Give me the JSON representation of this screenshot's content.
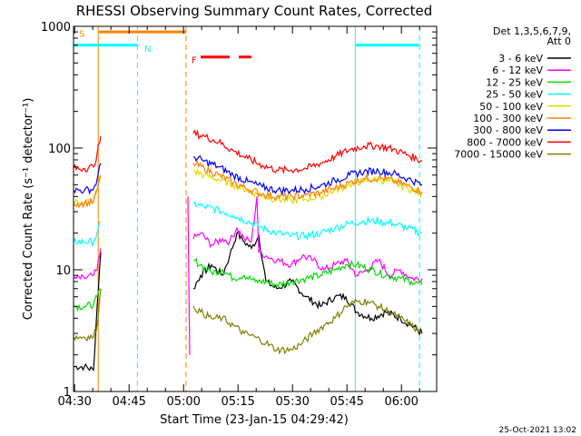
{
  "chart_data": {
    "type": "line",
    "title": "RHESSI Observing Summary Count Rates, Corrected",
    "xlabel": "Start Time (23-Jan-15 04:29:42)",
    "ylabel": "Corrected Count Rate (s⁻¹ detector⁻¹)",
    "ylog": true,
    "ylim": [
      1,
      1000
    ],
    "xlim_minutes": [
      0,
      100
    ],
    "x_unit": "minutes after 04:29:42",
    "x_ticks": [
      "04:30",
      "04:45",
      "05:00",
      "05:15",
      "05:30",
      "05:45",
      "06:00"
    ],
    "x_tick_minutes": [
      0.3,
      15.3,
      30.3,
      45.3,
      60.3,
      75.3,
      90.3
    ],
    "y_ticks": [
      "1",
      "10",
      "100",
      "1000"
    ],
    "y_tick_values": [
      1,
      10,
      100,
      1000
    ],
    "legend_header": [
      "Det 1,3,5,6,7,9,",
      "Att 0"
    ],
    "legend_position": "right",
    "series": [
      {
        "name": "3 - 6 keV",
        "color": "#000000",
        "segments": [
          {
            "x": [
              0,
              3,
              5.5,
              6.5,
              7.5
            ],
            "y": [
              1.6,
              1.6,
              1.5,
              5,
              14
            ]
          },
          {
            "x": [
              33,
              35,
              38,
              41,
              43,
              45,
              47,
              49,
              51,
              53,
              56,
              60,
              64,
              68,
              72,
              75,
              78,
              82,
              86,
              90,
              93,
              96
            ],
            "y": [
              7,
              9,
              11,
              9,
              13,
              20,
              17,
              15,
              19,
              8,
              7,
              8,
              6,
              5,
              6,
              6,
              4.5,
              4,
              4.5,
              4,
              3.5,
              3
            ]
          }
        ]
      },
      {
        "name": "6 - 12 keV",
        "color": "#ff00ff",
        "segments": [
          {
            "x": [
              0,
              3,
              5.5,
              6.5,
              7.5
            ],
            "y": [
              8.5,
              8.5,
              9,
              10,
              15
            ]
          },
          {
            "x": [
              31.5,
              32
            ],
            "y": [
              40,
              2
            ]
          },
          {
            "x": [
              33,
              35,
              38,
              41,
              43,
              45,
              47,
              49,
              50.5,
              51,
              53,
              56,
              60,
              63,
              66,
              69,
              72,
              75,
              78,
              81,
              84,
              87,
              90,
              93,
              96
            ],
            "y": [
              18,
              20,
              16,
              18,
              17,
              22,
              18,
              17,
              40,
              14,
              13,
              12,
              11,
              13,
              12,
              10,
              11,
              12,
              9,
              10,
              12,
              9,
              10,
              8.5,
              8.5
            ]
          }
        ]
      },
      {
        "name": "12 - 25 keV",
        "color": "#00dd00",
        "segments": [
          {
            "x": [
              0,
              3,
              5.5,
              6.5,
              7.5
            ],
            "y": [
              5,
              5,
              5.2,
              6,
              7
            ]
          },
          {
            "x": [
              33,
              35,
              38,
              41,
              44,
              47,
              50,
              53,
              56,
              60,
              64,
              68,
              72,
              75,
              78,
              82,
              86,
              90,
              93,
              96
            ],
            "y": [
              12,
              11,
              9.5,
              10,
              8.5,
              9,
              8,
              8,
              7.5,
              8,
              8.5,
              9,
              10,
              11,
              11,
              10,
              9,
              8.5,
              8,
              7.5
            ]
          }
        ]
      },
      {
        "name": "25 - 50 keV",
        "color": "#00ffff",
        "segments": [
          {
            "x": [
              0,
              3,
              5.5,
              6.5,
              7.5
            ],
            "y": [
              17,
              17,
              17,
              20,
              25
            ]
          },
          {
            "x": [
              33,
              36,
              40,
              44,
              48,
              52,
              56,
              60,
              64,
              68,
              72,
              76,
              80,
              84,
              88,
              92,
              96
            ],
            "y": [
              35,
              33,
              31,
              28,
              25,
              22,
              20,
              19,
              19,
              20,
              22,
              24,
              25,
              25,
              24,
              22,
              20
            ]
          }
        ]
      },
      {
        "name": "50 - 100 keV",
        "color": "#dddd00",
        "segments": [
          {
            "x": [
              0,
              3,
              5.5,
              6.5,
              7.5
            ],
            "y": [
              36,
              36,
              37,
              45,
              60
            ]
          },
          {
            "x": [
              33,
              36,
              40,
              44,
              48,
              52,
              56,
              60,
              64,
              68,
              72,
              76,
              80,
              84,
              88,
              92,
              96
            ],
            "y": [
              65,
              60,
              55,
              50,
              45,
              40,
              38,
              37,
              38,
              40,
              45,
              50,
              54,
              55,
              52,
              47,
              42
            ]
          }
        ]
      },
      {
        "name": "100 - 300 keV",
        "color": "#ff8000",
        "segments": [
          {
            "x": [
              0,
              3,
              5.5,
              6.5,
              7.5
            ],
            "y": [
              35,
              35,
              36,
              45,
              60
            ]
          },
          {
            "x": [
              33,
              36,
              40,
              44,
              48,
              52,
              56,
              60,
              64,
              68,
              72,
              76,
              80,
              84,
              88,
              92,
              96
            ],
            "y": [
              75,
              68,
              60,
              52,
              46,
              42,
              40,
              40,
              41,
              43,
              47,
              52,
              56,
              57,
              54,
              49,
              44
            ]
          }
        ]
      },
      {
        "name": "300 - 800 keV",
        "color": "#0000ff",
        "segments": [
          {
            "x": [
              0,
              3,
              5.5,
              6.5,
              7.5
            ],
            "y": [
              45,
              45,
              46,
              55,
              75
            ]
          },
          {
            "x": [
              33,
              36,
              40,
              44,
              48,
              52,
              56,
              60,
              64,
              68,
              72,
              76,
              80,
              84,
              88,
              92,
              96
            ],
            "y": [
              85,
              78,
              70,
              60,
              53,
              48,
              45,
              45,
              46,
              49,
              54,
              60,
              64,
              65,
              62,
              56,
              50
            ]
          }
        ]
      },
      {
        "name": "800 - 7000 keV",
        "color": "#ff0000",
        "segments": [
          {
            "x": [
              0,
              3,
              5.5,
              6.5,
              7.5
            ],
            "y": [
              68,
              68,
              70,
              90,
              125
            ]
          },
          {
            "x": [
              33,
              36,
              40,
              44,
              48,
              52,
              56,
              60,
              64,
              68,
              72,
              76,
              80,
              84,
              88,
              92,
              96
            ],
            "y": [
              132,
              125,
              112,
              95,
              82,
              72,
              66,
              66,
              68,
              75,
              85,
              97,
              104,
              104,
              98,
              88,
              78
            ]
          }
        ]
      },
      {
        "name": "7000 - 15000 keV",
        "color": "#808000",
        "segments": [
          {
            "x": [
              0,
              3,
              5.5,
              6.5,
              7.5
            ],
            "y": [
              2.8,
              2.8,
              2.8,
              3.5,
              7
            ]
          },
          {
            "x": [
              33,
              35,
              38,
              41,
              44,
              47,
              50,
              53,
              56,
              60,
              63,
              66,
              69,
              72,
              75,
              78,
              81,
              84,
              87,
              90,
              93,
              96
            ],
            "y": [
              5,
              4.5,
              4,
              4,
              3.5,
              3,
              2.8,
              2.5,
              2.2,
              2.2,
              2.5,
              3,
              3.5,
              4,
              5,
              5.5,
              5.5,
              5,
              4.5,
              4,
              3.5,
              3
            ]
          }
        ]
      }
    ],
    "flags": [
      {
        "label": "S",
        "color": "#ff8000",
        "x_start": 7,
        "x_end": 31,
        "y": 900
      },
      {
        "label": "N",
        "color": "#00ffff",
        "x_start": 0,
        "x_end": 17.5,
        "y": 700
      },
      {
        "label": "N",
        "color": "#00ffff",
        "x_start": 77.5,
        "x_end": 95.3,
        "y": 700
      },
      {
        "label": "F",
        "color": "#ff0000",
        "x_start": 35,
        "x_end": 43,
        "y": 560
      },
      {
        "label": "F",
        "color": "#ff0000",
        "x_start": 45.5,
        "x_end": 49,
        "y": 560
      }
    ],
    "vertical_lines": [
      {
        "x": 6.8,
        "color": "#ff8000",
        "style": "solid"
      },
      {
        "x": 17.6,
        "color": "#00ffff",
        "style": "dashed"
      },
      {
        "x": 31,
        "color": "#ff8000",
        "style": "dashed"
      },
      {
        "x": 77.6,
        "color": "#00ffff",
        "style": "solid"
      },
      {
        "x": 95.3,
        "color": "#00ffff",
        "style": "dashed"
      }
    ],
    "flag_labels": [
      {
        "text": "S",
        "color": "#ff8000",
        "x": 1.5,
        "y": 820
      },
      {
        "text": "N",
        "color": "#00ffff",
        "x": 19.5,
        "y": 620
      },
      {
        "text": "F",
        "color": "#ff0000",
        "x": 32.5,
        "y": 500
      }
    ]
  },
  "footer": {
    "timestamp": "25-Oct-2021 13:02"
  }
}
